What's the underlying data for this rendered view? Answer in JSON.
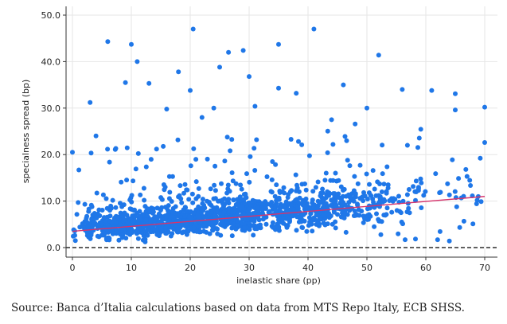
{
  "chart_data": {
    "type": "scatter",
    "title": "",
    "xlabel": "inelastic share (pp)",
    "ylabel": "specialness spread (bp)",
    "xlim": [
      0,
      70
    ],
    "ylim": [
      0,
      50
    ],
    "xticks": [
      "0",
      "10",
      "20",
      "30",
      "40",
      "50",
      "60",
      "70"
    ],
    "yticks": [
      "0.0",
      "10.0",
      "20.0",
      "30.0",
      "40.0",
      "50.0"
    ],
    "grid": true,
    "point_color": "#1f77e8",
    "fit_line": {
      "color": "#d6336c",
      "x": [
        0,
        70
      ],
      "y": [
        3.5,
        11.0
      ]
    },
    "zero_line": {
      "y": 0,
      "style": "dashed",
      "color": "#000000"
    },
    "highlight_points": [
      {
        "x": 0.0,
        "y": 20.5
      },
      {
        "x": 3.0,
        "y": 31.2
      },
      {
        "x": 6.0,
        "y": 44.3
      },
      {
        "x": 10.0,
        "y": 43.7
      },
      {
        "x": 11.0,
        "y": 40.0
      },
      {
        "x": 9.0,
        "y": 35.5
      },
      {
        "x": 13.0,
        "y": 35.3
      },
      {
        "x": 16.0,
        "y": 29.8
      },
      {
        "x": 18.0,
        "y": 37.8
      },
      {
        "x": 20.0,
        "y": 33.8
      },
      {
        "x": 20.5,
        "y": 47.0
      },
      {
        "x": 25.0,
        "y": 38.8
      },
      {
        "x": 26.5,
        "y": 42.0
      },
      {
        "x": 29.0,
        "y": 42.4
      },
      {
        "x": 30.0,
        "y": 36.8
      },
      {
        "x": 35.0,
        "y": 43.7
      },
      {
        "x": 35.0,
        "y": 34.3
      },
      {
        "x": 41.0,
        "y": 47.0
      },
      {
        "x": 38.0,
        "y": 33.2
      },
      {
        "x": 46.0,
        "y": 35.0
      },
      {
        "x": 50.0,
        "y": 30.0
      },
      {
        "x": 52.0,
        "y": 41.4
      },
      {
        "x": 56.0,
        "y": 34.0
      },
      {
        "x": 61.0,
        "y": 33.8
      },
      {
        "x": 65.0,
        "y": 33.1
      },
      {
        "x": 65.0,
        "y": 29.6
      },
      {
        "x": 70.0,
        "y": 30.2
      },
      {
        "x": 70.0,
        "y": 22.6
      },
      {
        "x": 67.0,
        "y": 15.3
      },
      {
        "x": 68.0,
        "y": 5.1
      },
      {
        "x": 64.0,
        "y": 1.4
      },
      {
        "x": 62.0,
        "y": 1.7
      },
      {
        "x": 57.0,
        "y": 9.5
      },
      {
        "x": 48.0,
        "y": 26.6
      },
      {
        "x": 44.0,
        "y": 27.5
      },
      {
        "x": 31.0,
        "y": 30.4
      },
      {
        "x": 24.0,
        "y": 30.0
      },
      {
        "x": 22.0,
        "y": 28.0
      },
      {
        "x": 4.0,
        "y": 24.0
      },
      {
        "x": 1.5,
        "y": 4.5
      },
      {
        "x": 0.5,
        "y": 1.5
      }
    ]
  },
  "source": "Source: Banca d’Italia calculations based on data from MTS Repo Italy, ECB SHSS."
}
